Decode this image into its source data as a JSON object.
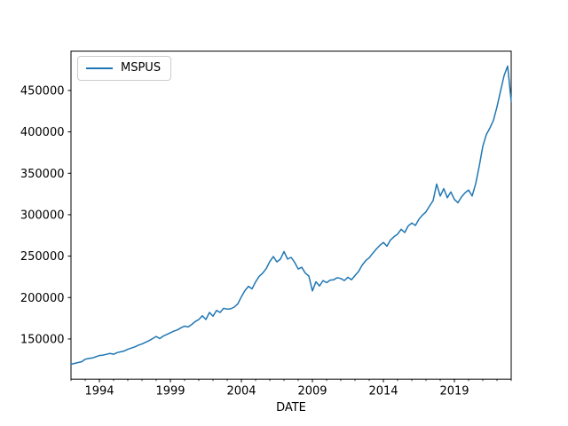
{
  "chart_data": {
    "type": "line",
    "title": "",
    "xlabel": "DATE",
    "ylabel": "",
    "grid": false,
    "background_color": "#ffffff",
    "spine_color": "#000000",
    "legend": {
      "position": "upper left",
      "entries": [
        "MSPUS"
      ]
    },
    "x_axis": {
      "lim": [
        1992.0,
        2023.0
      ],
      "major_ticks": [
        1994,
        1999,
        2004,
        2009,
        2014,
        2019
      ],
      "major_tick_labels": [
        "1994",
        "1999",
        "2004",
        "2009",
        "2014",
        "2019"
      ],
      "minor_tick_interval_years": 1
    },
    "y_axis": {
      "lim": [
        101500,
        497500
      ],
      "ticks": [
        150000,
        200000,
        250000,
        300000,
        350000,
        400000,
        450000
      ],
      "tick_labels": [
        "150000",
        "200000",
        "250000",
        "300000",
        "350000",
        "400000",
        "450000"
      ]
    },
    "series": [
      {
        "name": "MSPUS",
        "color": "#1f77b4",
        "line_width": 1.5,
        "start": "1992-Q1",
        "end": "2023-Q1",
        "frequency": "quarterly",
        "values": [
          119500,
          120500,
          121500,
          122500,
          125500,
          126500,
          127000,
          128500,
          130000,
          130500,
          131500,
          132500,
          131500,
          133500,
          134500,
          135500,
          137500,
          139000,
          140500,
          142500,
          144000,
          146000,
          148000,
          150500,
          153000,
          150500,
          153500,
          155500,
          157500,
          159500,
          161000,
          163500,
          165500,
          164500,
          167500,
          171000,
          173500,
          178000,
          173500,
          182000,
          177500,
          184500,
          182000,
          187000,
          186000,
          186500,
          188500,
          192500,
          201000,
          208500,
          213500,
          210500,
          219000,
          225500,
          229500,
          235000,
          243500,
          249500,
          243000,
          246500,
          255500,
          246500,
          248500,
          242500,
          234500,
          236500,
          229500,
          226000,
          208000,
          219000,
          214000,
          220500,
          218000,
          221000,
          221500,
          224000,
          223000,
          220500,
          224500,
          221500,
          226500,
          231500,
          239000,
          244500,
          248000,
          253500,
          258500,
          263000,
          266500,
          262000,
          269500,
          273500,
          276500,
          282500,
          278500,
          286500,
          290000,
          287000,
          294500,
          299500,
          303500,
          310500,
          317000,
          337000,
          322500,
          331500,
          320500,
          327500,
          318500,
          314500,
          321500,
          326500,
          329800,
          322600,
          337500,
          358700,
          382600,
          396800,
          404700,
          414000,
          430300,
          449300,
          468000,
          479500,
          436800
        ]
      }
    ]
  }
}
